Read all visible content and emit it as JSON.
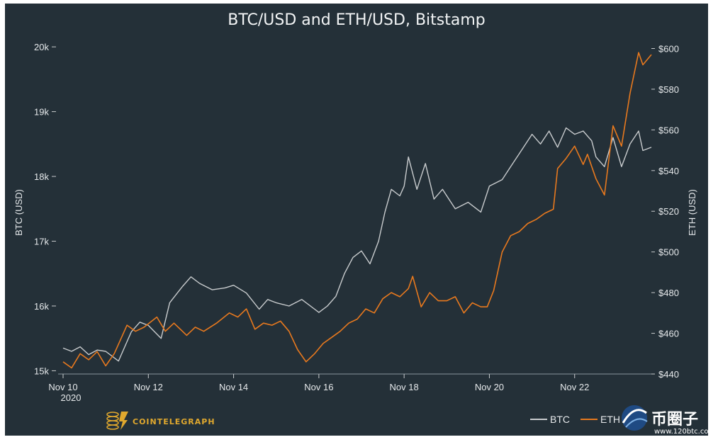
{
  "chart_data": {
    "type": "line",
    "title": "BTC/USD and ETH/USD, Bitstamp",
    "xlabel": "",
    "x_ticks": [
      "Nov 10",
      "Nov 12",
      "Nov 14",
      "Nov 16",
      "Nov 18",
      "Nov 20",
      "Nov 22"
    ],
    "x_year_label": "2020",
    "x_range_days": [
      10,
      23.8
    ],
    "y_left": {
      "label": "BTC (USD)",
      "range": [
        14950,
        20100
      ],
      "ticks": [
        15000,
        16000,
        17000,
        18000,
        19000,
        20000
      ],
      "tick_labels": [
        "15k",
        "16k",
        "17k",
        "18k",
        "19k",
        "20k"
      ]
    },
    "y_right": {
      "label": "ETH (USD)",
      "range": [
        440,
        604
      ],
      "ticks": [
        440,
        460,
        480,
        500,
        520,
        540,
        560,
        580,
        600
      ],
      "tick_labels": [
        "$440",
        "$460",
        "$480",
        "$500",
        "$520",
        "$540",
        "$560",
        "$580",
        "$600"
      ]
    },
    "series": [
      {
        "name": "BTC",
        "axis": "left",
        "color": "#c9ccce",
        "x": [
          10.0,
          10.2,
          10.4,
          10.6,
          10.8,
          11.0,
          11.3,
          11.6,
          11.8,
          12.0,
          12.3,
          12.5,
          12.8,
          13.0,
          13.2,
          13.5,
          13.8,
          14.0,
          14.3,
          14.6,
          14.8,
          15.0,
          15.3,
          15.6,
          15.9,
          16.0,
          16.2,
          16.4,
          16.6,
          16.8,
          17.0,
          17.2,
          17.4,
          17.55,
          17.7,
          17.9,
          18.0,
          18.1,
          18.3,
          18.5,
          18.7,
          18.9,
          19.2,
          19.5,
          19.8,
          20.0,
          20.3,
          20.5,
          20.7,
          21.0,
          21.2,
          21.4,
          21.6,
          21.8,
          22.0,
          22.2,
          22.4,
          22.5,
          22.7,
          22.9,
          23.1,
          23.3,
          23.5,
          23.6,
          23.8
        ],
        "values": [
          15350,
          15300,
          15370,
          15250,
          15320,
          15300,
          15150,
          15600,
          15750,
          15700,
          15500,
          16050,
          16300,
          16450,
          16350,
          16250,
          16280,
          16320,
          16200,
          15950,
          16100,
          16050,
          16000,
          16100,
          15950,
          15900,
          16000,
          16150,
          16500,
          16750,
          16850,
          16650,
          17000,
          17450,
          17800,
          17700,
          17850,
          18300,
          17800,
          18200,
          17650,
          17800,
          17500,
          17600,
          17450,
          17850,
          17950,
          18150,
          18350,
          18650,
          18500,
          18700,
          18450,
          18750,
          18650,
          18700,
          18550,
          18300,
          18150,
          18600,
          18150,
          18500,
          18700,
          18400,
          18450
        ]
      },
      {
        "name": "ETH",
        "axis": "right",
        "color": "#e8791e",
        "x": [
          10.0,
          10.2,
          10.4,
          10.6,
          10.8,
          11.0,
          11.2,
          11.5,
          11.7,
          11.9,
          12.2,
          12.4,
          12.6,
          12.9,
          13.1,
          13.3,
          13.6,
          13.9,
          14.1,
          14.3,
          14.5,
          14.7,
          14.9,
          15.1,
          15.3,
          15.5,
          15.7,
          15.9,
          16.1,
          16.3,
          16.5,
          16.7,
          16.9,
          17.1,
          17.3,
          17.5,
          17.7,
          17.9,
          18.1,
          18.2,
          18.4,
          18.6,
          18.8,
          19.0,
          19.2,
          19.4,
          19.6,
          19.8,
          19.95,
          20.1,
          20.3,
          20.5,
          20.7,
          20.9,
          21.1,
          21.3,
          21.5,
          21.6,
          21.8,
          22.0,
          22.2,
          22.3,
          22.5,
          22.7,
          22.9,
          23.1,
          23.3,
          23.5,
          23.6,
          23.8
        ],
        "values": [
          446,
          443,
          450,
          447,
          451,
          444,
          450,
          464,
          461,
          463,
          468,
          461,
          465,
          459,
          463,
          461,
          465,
          470,
          468,
          472,
          462,
          465,
          464,
          466,
          461,
          452,
          446,
          450,
          455,
          458,
          461,
          465,
          467,
          472,
          470,
          477,
          480,
          478,
          482,
          488,
          473,
          480,
          476,
          476,
          478,
          470,
          475,
          473,
          473,
          481,
          500,
          508,
          510,
          514,
          516,
          519,
          521,
          541,
          546,
          552,
          543,
          548,
          536,
          528,
          562,
          552,
          578,
          598,
          592,
          597
        ]
      }
    ]
  },
  "legend": [
    {
      "label": "BTC",
      "color": "#c9ccce"
    },
    {
      "label": "ETH",
      "color": "#e8791e"
    }
  ],
  "branding": {
    "source_label": "COINTELEGRAPH",
    "watermark_label": "币圈子",
    "watermark_url": "www.120btc.com"
  }
}
